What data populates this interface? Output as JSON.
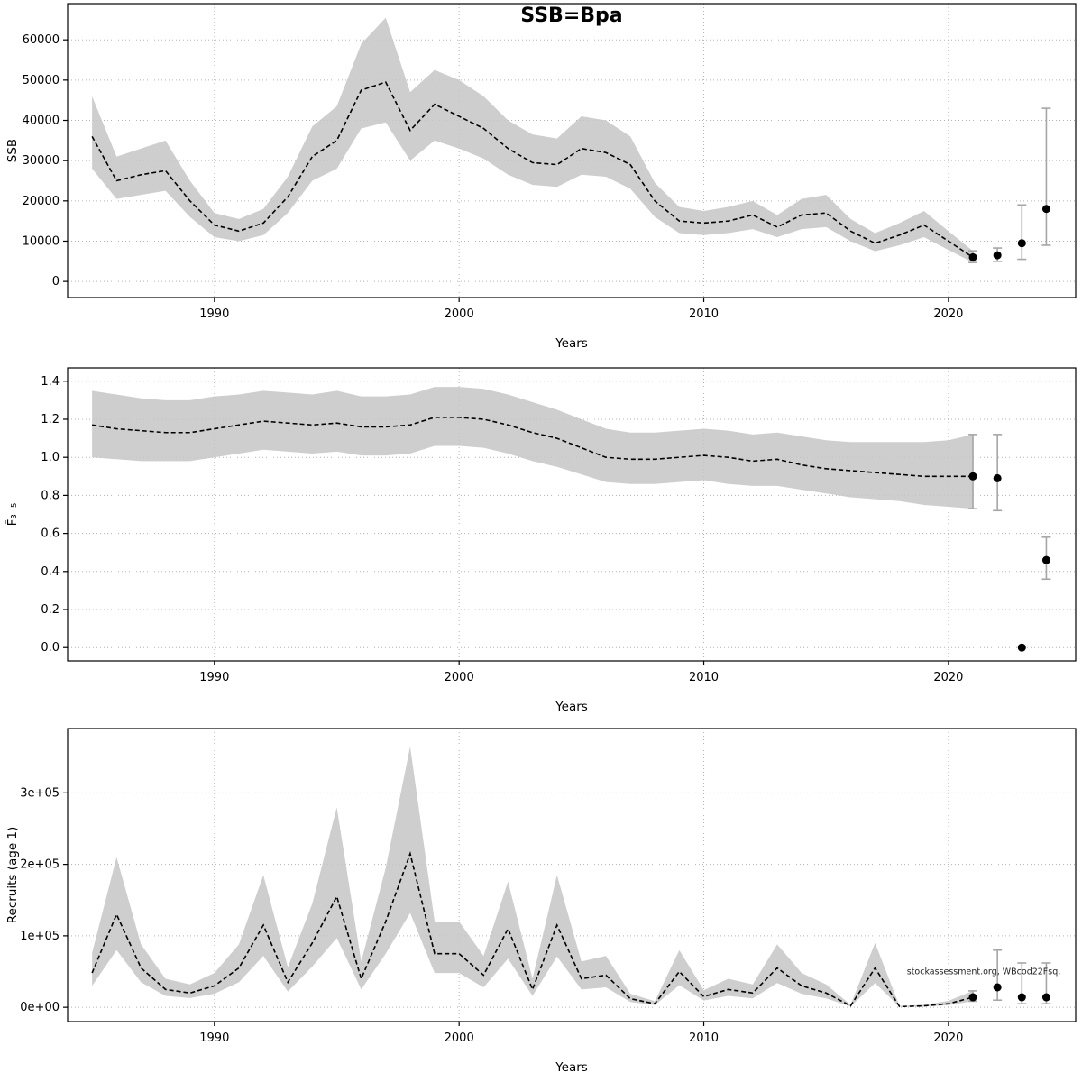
{
  "figure": {
    "title": "SSB=Bpa",
    "watermark": "stockassessment.org, WBcod22Fsq,"
  },
  "chart_data": [
    {
      "id": "ssb",
      "type": "line",
      "title": "SSB=Bpa",
      "ylabel": "SSB",
      "xlabel": "Years",
      "xlim": [
        1984,
        2025.2
      ],
      "ylim": [
        -4000,
        69000
      ],
      "xticks": [
        1990,
        2000,
        2010,
        2020
      ],
      "yticks": [
        0,
        10000,
        20000,
        30000,
        40000,
        50000,
        60000
      ],
      "ytick_labels": [
        "0",
        "10000",
        "20000",
        "30000",
        "40000",
        "50000",
        "60000"
      ],
      "x": [
        1985,
        1986,
        1987,
        1988,
        1989,
        1990,
        1991,
        1992,
        1993,
        1994,
        1995,
        1996,
        1997,
        1998,
        1999,
        2000,
        2001,
        2002,
        2003,
        2004,
        2005,
        2006,
        2007,
        2008,
        2009,
        2010,
        2011,
        2012,
        2013,
        2014,
        2015,
        2016,
        2017,
        2018,
        2019,
        2020,
        2021
      ],
      "line": [
        36000,
        25000,
        26500,
        27500,
        20000,
        14000,
        12500,
        14500,
        21000,
        31000,
        35000,
        47500,
        49500,
        37500,
        44000,
        41000,
        38000,
        33000,
        29500,
        29000,
        33000,
        32000,
        29000,
        20000,
        15000,
        14500,
        15000,
        16500,
        13500,
        16500,
        17000,
        12500,
        9500,
        11500,
        14000,
        10000,
        6000
      ],
      "band_lower": [
        28000,
        20500,
        21500,
        22500,
        16000,
        11000,
        10000,
        11500,
        17000,
        25000,
        28000,
        38000,
        39500,
        30000,
        35000,
        33000,
        30500,
        26500,
        24000,
        23500,
        26500,
        26000,
        23000,
        16000,
        12000,
        11500,
        12000,
        13000,
        11000,
        13000,
        13500,
        10000,
        7500,
        9000,
        11000,
        7800,
        4700
      ],
      "band_upper": [
        46000,
        31000,
        33000,
        35000,
        25000,
        17000,
        15500,
        18000,
        26000,
        38500,
        43500,
        59000,
        65500,
        47000,
        52500,
        50000,
        46000,
        40000,
        36500,
        35500,
        41000,
        40000,
        36000,
        24500,
        18500,
        17500,
        18500,
        20000,
        16500,
        20500,
        21500,
        15500,
        12000,
        14500,
        17500,
        12500,
        7600
      ],
      "points": [
        {
          "x": 2021,
          "y": 6000,
          "lo": 4700,
          "hi": 7600
        },
        {
          "x": 2022,
          "y": 6500,
          "lo": 5000,
          "hi": 8300
        },
        {
          "x": 2023,
          "y": 9500,
          "lo": 5500,
          "hi": 19000
        },
        {
          "x": 2024,
          "y": 18000,
          "lo": 9000,
          "hi": 43000
        }
      ]
    },
    {
      "id": "fbar",
      "type": "line",
      "title": "",
      "ylabel": "F̄₃₋₅",
      "xlabel": "Years",
      "xlim": [
        1984,
        2025.2
      ],
      "ylim": [
        -0.07,
        1.47
      ],
      "xticks": [
        1990,
        2000,
        2010,
        2020
      ],
      "yticks": [
        0,
        0.2,
        0.4,
        0.6,
        0.8,
        1.0,
        1.2,
        1.4
      ],
      "ytick_labels": [
        "0.0",
        "0.2",
        "0.4",
        "0.6",
        "0.8",
        "1.0",
        "1.2",
        "1.4"
      ],
      "x": [
        1985,
        1986,
        1987,
        1988,
        1989,
        1990,
        1991,
        1992,
        1993,
        1994,
        1995,
        1996,
        1997,
        1998,
        1999,
        2000,
        2001,
        2002,
        2003,
        2004,
        2005,
        2006,
        2007,
        2008,
        2009,
        2010,
        2011,
        2012,
        2013,
        2014,
        2015,
        2016,
        2017,
        2018,
        2019,
        2020,
        2021
      ],
      "line": [
        1.17,
        1.15,
        1.14,
        1.13,
        1.13,
        1.15,
        1.17,
        1.19,
        1.18,
        1.17,
        1.18,
        1.16,
        1.16,
        1.17,
        1.21,
        1.21,
        1.2,
        1.17,
        1.13,
        1.1,
        1.05,
        1.0,
        0.99,
        0.99,
        1.0,
        1.01,
        1.0,
        0.98,
        0.99,
        0.96,
        0.94,
        0.93,
        0.92,
        0.91,
        0.9,
        0.9,
        0.9
      ],
      "band_lower": [
        1.0,
        0.99,
        0.98,
        0.98,
        0.98,
        1.0,
        1.02,
        1.04,
        1.03,
        1.02,
        1.03,
        1.01,
        1.01,
        1.02,
        1.06,
        1.06,
        1.05,
        1.02,
        0.98,
        0.95,
        0.91,
        0.87,
        0.86,
        0.86,
        0.87,
        0.88,
        0.86,
        0.85,
        0.85,
        0.83,
        0.81,
        0.79,
        0.78,
        0.77,
        0.75,
        0.74,
        0.73
      ],
      "band_upper": [
        1.35,
        1.33,
        1.31,
        1.3,
        1.3,
        1.32,
        1.33,
        1.35,
        1.34,
        1.33,
        1.35,
        1.32,
        1.32,
        1.33,
        1.37,
        1.37,
        1.36,
        1.33,
        1.29,
        1.25,
        1.2,
        1.15,
        1.13,
        1.13,
        1.14,
        1.15,
        1.14,
        1.12,
        1.13,
        1.11,
        1.09,
        1.08,
        1.08,
        1.08,
        1.08,
        1.09,
        1.12
      ],
      "points": [
        {
          "x": 2021,
          "y": 0.9,
          "lo": 0.73,
          "hi": 1.12
        },
        {
          "x": 2022,
          "y": 0.89,
          "lo": 0.72,
          "hi": 1.12
        },
        {
          "x": 2023,
          "y": 0.0,
          "lo": 0.0,
          "hi": 0.0
        },
        {
          "x": 2024,
          "y": 0.46,
          "lo": 0.36,
          "hi": 0.58
        }
      ]
    },
    {
      "id": "recruits",
      "type": "line",
      "title": "",
      "ylabel": "Recruits (age 1)",
      "xlabel": "Years",
      "xlim": [
        1984,
        2025.2
      ],
      "ylim": [
        -20000,
        390000
      ],
      "xticks": [
        1990,
        2000,
        2010,
        2020
      ],
      "yticks": [
        0,
        100000,
        200000,
        300000
      ],
      "ytick_labels": [
        "0e+00",
        "1e+05",
        "2e+05",
        "3e+05"
      ],
      "x": [
        1985,
        1986,
        1987,
        1988,
        1989,
        1990,
        1991,
        1992,
        1993,
        1994,
        1995,
        1996,
        1997,
        1998,
        1999,
        2000,
        2001,
        2002,
        2003,
        2004,
        2005,
        2006,
        2007,
        2008,
        2009,
        2010,
        2011,
        2012,
        2013,
        2014,
        2015,
        2016,
        2017,
        2018,
        2019,
        2020,
        2021
      ],
      "line": [
        48000,
        130000,
        55000,
        25000,
        20000,
        30000,
        55000,
        115000,
        35000,
        90000,
        155000,
        40000,
        120000,
        215000,
        75000,
        75000,
        45000,
        110000,
        25000,
        115000,
        40000,
        45000,
        12000,
        5000,
        50000,
        15000,
        25000,
        20000,
        55000,
        30000,
        20000,
        2000,
        55000,
        1000,
        2000,
        5000,
        14000
      ],
      "band_lower": [
        30000,
        80000,
        35000,
        16000,
        13000,
        19000,
        35000,
        72000,
        22000,
        57000,
        97000,
        25000,
        75000,
        132000,
        48000,
        48000,
        28000,
        68000,
        16000,
        71000,
        25000,
        28000,
        7500,
        3000,
        31000,
        9500,
        16000,
        12500,
        34000,
        19000,
        12500,
        1200,
        34000,
        600,
        1200,
        3000,
        8500
      ],
      "band_upper": [
        76000,
        210000,
        88000,
        40000,
        32000,
        48000,
        88000,
        185000,
        56000,
        145000,
        280000,
        64000,
        195000,
        365000,
        120000,
        120000,
        72000,
        176000,
        40000,
        185000,
        64000,
        72000,
        19000,
        8500,
        80000,
        24000,
        40000,
        32000,
        88000,
        48000,
        32000,
        3500,
        90000,
        1800,
        3500,
        9000,
        23000
      ],
      "points": [
        {
          "x": 2021,
          "y": 14000,
          "lo": 8500,
          "hi": 23000
        },
        {
          "x": 2022,
          "y": 28000,
          "lo": 10000,
          "hi": 80000
        },
        {
          "x": 2023,
          "y": 14000,
          "lo": 5000,
          "hi": 62000
        },
        {
          "x": 2024,
          "y": 14000,
          "lo": 5000,
          "hi": 62000
        }
      ],
      "annotation": {
        "x": 2018.3,
        "y": 46000,
        "text": "stockassessment.org, WBcod22Fsq,"
      }
    }
  ]
}
